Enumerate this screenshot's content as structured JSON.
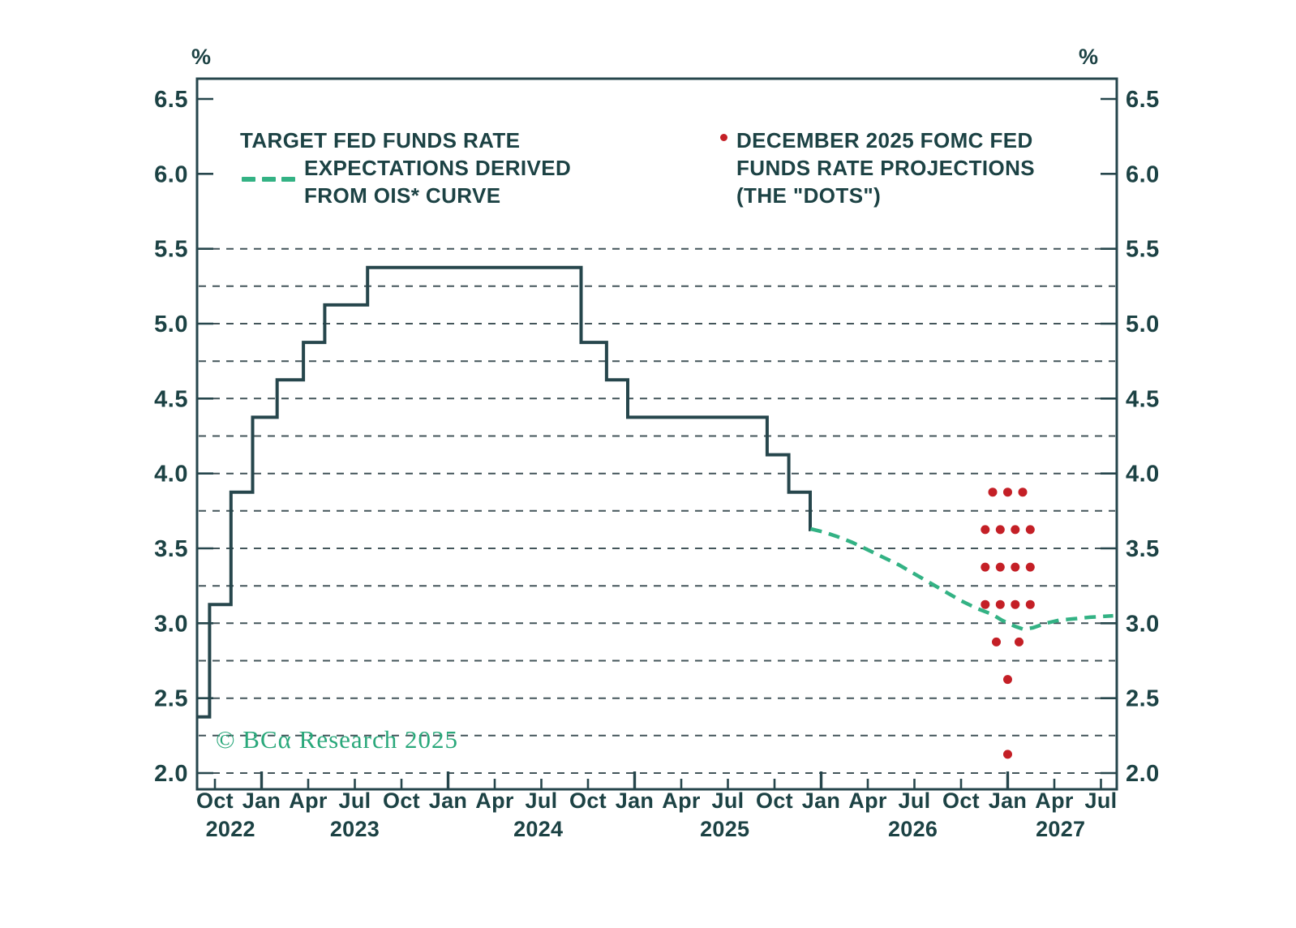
{
  "colors": {
    "text_dark": "#1c4244",
    "frame_dark": "#26464c",
    "grid": "#43555a",
    "ois_green": "#33b284",
    "dots_red": "#c41f26",
    "copyright_green": "#2aa87b",
    "background": "#ffffff"
  },
  "axis": {
    "unit_left": "%",
    "unit_right": "%",
    "y_label_step": 0.5,
    "grid_min": 2.0,
    "grid_top": 5.5,
    "grid_step": 0.25,
    "x_month_labels": [
      "Oct",
      "Jan",
      "Apr",
      "Jul",
      "Oct",
      "Jan",
      "Apr",
      "Jul",
      "Oct",
      "Jan",
      "Apr",
      "Jul",
      "Oct",
      "Jan",
      "Apr",
      "Jul",
      "Oct",
      "Jan",
      "Apr",
      "Jul"
    ],
    "x_year_labels": [
      "2022",
      "2023",
      "2024",
      "2025",
      "2026",
      "2027"
    ]
  },
  "legend_ois": {
    "line1": "TARGET FED FUNDS RATE",
    "line2": "EXPECTATIONS DERIVED",
    "line3": "FROM OIS* CURVE"
  },
  "legend_dots": {
    "line1": "DECEMBER 2025 FOMC FED",
    "line2": "FUNDS RATE PROJECTIONS",
    "line3": "(THE \"DOTS\")"
  },
  "copyright": "© BCα Research 2025",
  "chart_data": {
    "type": "line",
    "title": "",
    "y_axis_unit": "%",
    "ylim": [
      2.0,
      6.5
    ],
    "ytick_interval": 0.5,
    "grid_interval": 0.25,
    "grid_range": [
      2.0,
      5.5
    ],
    "x_range": [
      "Sep 2022",
      "Aug 2027"
    ],
    "legend_position": "top-inside",
    "series": [
      {
        "name": "Target fed funds rate",
        "type": "step",
        "color": "#26464c",
        "steps": [
          [
            "2022-08-28",
            2.375
          ],
          [
            "2022-09-21",
            3.125
          ],
          [
            "2022-11-02",
            3.875
          ],
          [
            "2022-12-14",
            4.375
          ],
          [
            "2023-02-01",
            4.625
          ],
          [
            "2023-03-22",
            4.875
          ],
          [
            "2023-05-03",
            5.125
          ],
          [
            "2023-07-26",
            5.375
          ],
          [
            "2024-09-18",
            4.875
          ],
          [
            "2024-11-07",
            4.625
          ],
          [
            "2024-12-18",
            4.375
          ],
          [
            "2025-09-17",
            4.125
          ],
          [
            "2025-10-29",
            3.875
          ],
          [
            "2025-12-10",
            3.625
          ]
        ],
        "end": "2025-12-11"
      },
      {
        "name": "Expectations derived from OIS* curve",
        "type": "dashed-line",
        "color": "#33b284",
        "points": [
          [
            "2025-12-11",
            3.63
          ],
          [
            "2026-01-05",
            3.61
          ],
          [
            "2026-02-01",
            3.58
          ],
          [
            "2026-03-01",
            3.54
          ],
          [
            "2026-04-01",
            3.49
          ],
          [
            "2026-05-01",
            3.44
          ],
          [
            "2026-06-01",
            3.39
          ],
          [
            "2026-07-01",
            3.33
          ],
          [
            "2026-08-01",
            3.27
          ],
          [
            "2026-09-01",
            3.21
          ],
          [
            "2026-10-01",
            3.15
          ],
          [
            "2026-11-01",
            3.1
          ],
          [
            "2026-12-01",
            3.06
          ],
          [
            "2026-12-20",
            3.02
          ],
          [
            "2027-01-15",
            2.98
          ],
          [
            "2027-02-01",
            2.96
          ],
          [
            "2027-02-20",
            2.97
          ],
          [
            "2027-03-15",
            3.0
          ],
          [
            "2027-04-10",
            3.02
          ],
          [
            "2027-05-10",
            3.03
          ],
          [
            "2027-06-10",
            3.04
          ],
          [
            "2027-07-25",
            3.05
          ]
        ]
      },
      {
        "name": "December 2025 FOMC fed funds rate projections (the \"dots\")",
        "type": "dot-plot",
        "color": "#c41f26",
        "plotted_at": "2027-01-01",
        "projections": [
          {
            "rate": 3.875,
            "count": 3
          },
          {
            "rate": 3.625,
            "count": 4
          },
          {
            "rate": 3.375,
            "count": 4
          },
          {
            "rate": 3.125,
            "count": 4
          },
          {
            "rate": 2.875,
            "count": 2
          },
          {
            "rate": 2.625,
            "count": 1
          },
          {
            "rate": 2.125,
            "count": 1
          }
        ]
      }
    ]
  }
}
